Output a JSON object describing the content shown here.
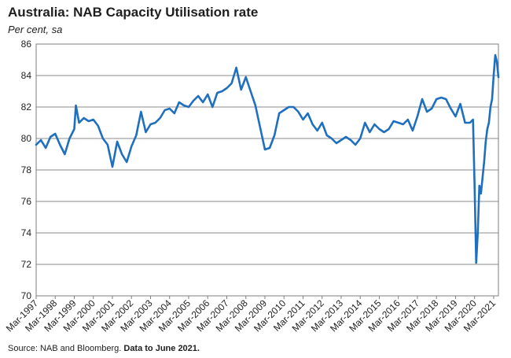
{
  "header": {
    "title": "Australia: NAB Capacity Utilisation rate",
    "subtitle": "Per cent, sa"
  },
  "footer": {
    "source": "Source: NAB and Bloomberg.",
    "note": "Data to June 2021."
  },
  "chart_data": {
    "type": "line",
    "title": "Australia: NAB Capacity Utilisation rate",
    "ylabel": "Per cent, sa",
    "ylim": [
      70,
      86
    ],
    "yticks": [
      70,
      72,
      74,
      76,
      78,
      80,
      82,
      84,
      86
    ],
    "xlim": [
      "Mar-1997",
      "Jun-2021"
    ],
    "xticks": [
      "Mar-1997",
      "Mar-1998",
      "Mar-1999",
      "Mar-2000",
      "Mar-2001",
      "Mar-2002",
      "Mar-2003",
      "Mar-2004",
      "Mar-2005",
      "Mar-2006",
      "Mar-2007",
      "Mar-2008",
      "Mar-2009",
      "Mar-2010",
      "Mar-2011",
      "Mar-2012",
      "Mar-2013",
      "Mar-2014",
      "Mar-2015",
      "Mar-2016",
      "Mar-2017",
      "Mar-2018",
      "Mar-2019",
      "Mar-2020",
      "Mar-2021"
    ],
    "grid": true,
    "legend": "none",
    "color": "#1f6fbf",
    "series": [
      {
        "x": [
          "1997-03",
          "1997-06",
          "1997-09",
          "1997-12",
          "1998-03",
          "1998-06",
          "1998-09",
          "1998-12",
          "1999-03",
          "1999-04",
          "1999-06",
          "1999-09",
          "1999-12",
          "2000-03",
          "2000-06",
          "2000-09",
          "2000-12",
          "2001-03",
          "2001-06",
          "2001-09",
          "2001-12",
          "2002-03",
          "2002-06",
          "2002-09",
          "2002-12",
          "2003-03",
          "2003-06",
          "2003-09",
          "2003-12",
          "2004-03",
          "2004-06",
          "2004-09",
          "2004-12",
          "2005-03",
          "2005-06",
          "2005-09",
          "2005-12",
          "2006-03",
          "2006-06",
          "2006-09",
          "2006-12",
          "2007-03",
          "2007-06",
          "2007-09",
          "2007-12",
          "2008-03",
          "2008-06",
          "2008-09",
          "2008-12",
          "2009-03",
          "2009-06",
          "2009-09",
          "2009-12",
          "2010-03",
          "2010-06",
          "2010-09",
          "2010-12",
          "2011-03",
          "2011-06",
          "2011-09",
          "2011-12",
          "2012-03",
          "2012-06",
          "2012-09",
          "2012-12",
          "2013-03",
          "2013-06",
          "2013-09",
          "2013-12",
          "2014-03",
          "2014-06",
          "2014-09",
          "2014-12",
          "2015-03",
          "2015-06",
          "2015-09",
          "2015-12",
          "2016-03",
          "2016-06",
          "2016-09",
          "2016-12",
          "2017-03",
          "2017-06",
          "2017-09",
          "2017-12",
          "2018-03",
          "2018-06",
          "2018-09",
          "2018-12",
          "2019-03",
          "2019-06",
          "2019-09",
          "2019-12",
          "2020-02",
          "2020-03",
          "2020-04",
          "2020-05",
          "2020-06",
          "2020-07",
          "2020-08",
          "2020-09",
          "2020-10",
          "2020-11",
          "2020-12",
          "2021-01",
          "2021-02",
          "2021-03",
          "2021-04",
          "2021-05",
          "2021-06"
        ],
        "values": [
          79.6,
          79.9,
          79.4,
          80.1,
          80.3,
          79.6,
          79.0,
          80.0,
          80.6,
          82.1,
          81.0,
          81.3,
          81.1,
          81.2,
          80.8,
          80.0,
          79.6,
          78.2,
          79.8,
          79.0,
          78.5,
          79.5,
          80.2,
          81.7,
          80.4,
          80.9,
          81.0,
          81.3,
          81.8,
          81.9,
          81.6,
          82.3,
          82.1,
          82.0,
          82.4,
          82.7,
          82.3,
          82.8,
          82.0,
          82.9,
          83.0,
          83.2,
          83.5,
          84.5,
          83.1,
          83.9,
          83.0,
          82.1,
          80.7,
          79.3,
          79.4,
          80.2,
          81.6,
          81.8,
          82.0,
          82.0,
          81.7,
          81.2,
          81.6,
          80.9,
          80.5,
          81.0,
          80.2,
          80.0,
          79.7,
          79.9,
          80.1,
          79.9,
          79.6,
          80.0,
          81.0,
          80.4,
          80.9,
          80.6,
          80.4,
          80.6,
          81.1,
          81.0,
          80.9,
          81.2,
          80.5,
          81.4,
          82.5,
          81.7,
          81.9,
          82.5,
          82.6,
          82.5,
          81.9,
          81.4,
          82.2,
          81.0,
          81.0,
          81.2,
          77.0,
          72.1,
          74.0,
          77.0,
          76.5,
          77.5,
          78.5,
          79.8,
          80.6,
          81.0,
          82.0,
          82.5,
          84.0,
          85.3,
          84.9,
          83.9
        ]
      }
    ]
  }
}
